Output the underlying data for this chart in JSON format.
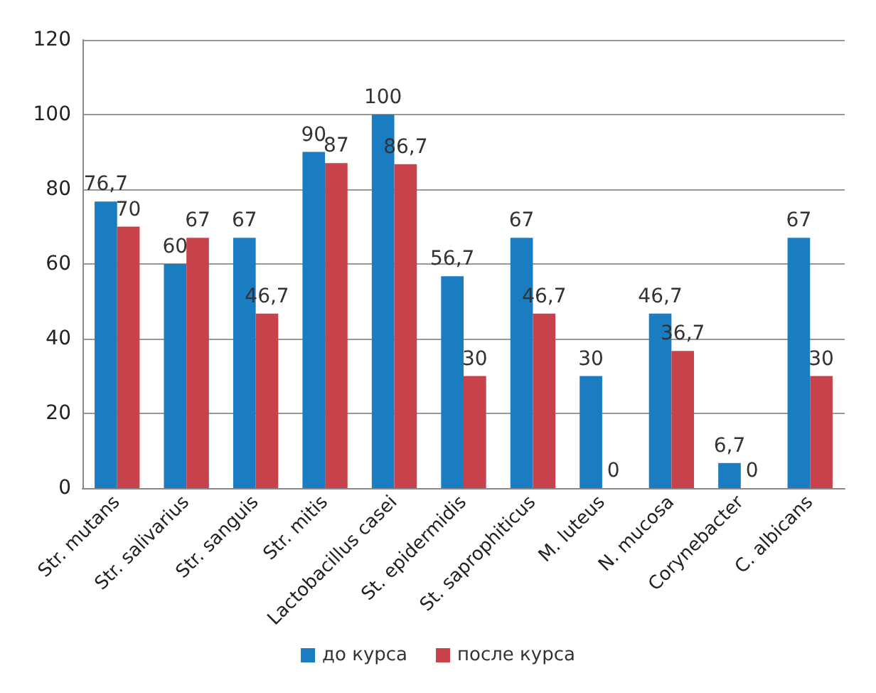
{
  "chart_data": {
    "type": "bar",
    "categories": [
      "Str. mutans",
      "Str. salivarius",
      "Str. sanguis",
      "Str. mitis",
      "Lactobacillus casei",
      "St. epidermidis",
      "St. saprophiticus",
      "M. luteus",
      "N. mucosa",
      "Corynebacter",
      "C. albicans"
    ],
    "series": [
      {
        "name": "до курса",
        "color": "#1a7cc1",
        "values": [
          76.7,
          60,
          67,
          90,
          100,
          56.7,
          67,
          30,
          46.7,
          6.7,
          67
        ],
        "value_labels": [
          "76,7",
          "60",
          "67",
          "90",
          "100",
          "56,7",
          "67",
          "30",
          "46,7",
          "6,7",
          "67"
        ]
      },
      {
        "name": "после курса",
        "color": "#c8424c",
        "values": [
          70,
          67,
          46.7,
          87,
          86.7,
          30,
          46.7,
          0,
          36.7,
          0,
          30
        ],
        "value_labels": [
          "70",
          "67",
          "46,7",
          "87",
          "86,7",
          "30",
          "46,7",
          "0",
          "36,7",
          "0",
          "30"
        ]
      }
    ],
    "ylim": [
      0,
      120
    ],
    "yticks": [
      0,
      20,
      40,
      60,
      80,
      100,
      120
    ],
    "grid": "y",
    "legend": "bottom"
  }
}
